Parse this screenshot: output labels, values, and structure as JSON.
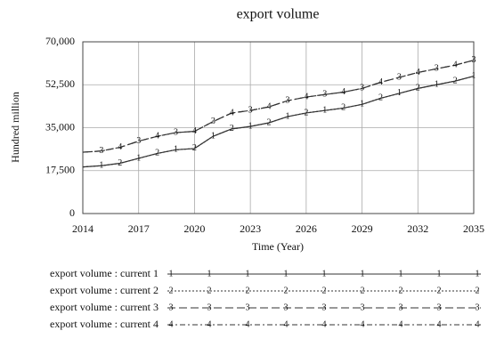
{
  "chart_data": {
    "type": "line",
    "title": "export volume",
    "x_label": "Time (Year)",
    "y_label": "Hundred million",
    "x": [
      2014,
      2015,
      2016,
      2017,
      2018,
      2019,
      2020,
      2021,
      2022,
      2023,
      2024,
      2025,
      2026,
      2027,
      2028,
      2029,
      2030,
      2031,
      2032,
      2033,
      2034,
      2035
    ],
    "series": [
      {
        "name": "export volume : current 1",
        "marker": "1",
        "line_style": "solid",
        "color": "#333333",
        "values": [
          19000,
          19500,
          20500,
          22500,
          24500,
          26000,
          26500,
          31500,
          34500,
          35500,
          37000,
          39500,
          41000,
          42000,
          43000,
          44500,
          47000,
          49000,
          51000,
          52500,
          54000,
          56000
        ]
      },
      {
        "name": "export volume : current 2",
        "marker": "2",
        "line_style": "dotted",
        "color": "#333333",
        "values": [
          19000,
          19500,
          20500,
          22500,
          24500,
          26000,
          26500,
          31500,
          34500,
          35500,
          37000,
          39500,
          41000,
          42000,
          43000,
          44500,
          47000,
          49000,
          51000,
          52500,
          54000,
          56000
        ]
      },
      {
        "name": "export volume : current 3",
        "marker": "3",
        "line_style": "dashed",
        "color": "#333333",
        "values": [
          25000,
          25500,
          27000,
          29500,
          31500,
          33000,
          33500,
          37500,
          41000,
          42000,
          43500,
          46000,
          47500,
          48500,
          49500,
          51000,
          53500,
          55500,
          57500,
          59000,
          60500,
          62500
        ]
      },
      {
        "name": "export volume : current 4",
        "marker": "4",
        "line_style": "dashdot",
        "color": "#333333",
        "values": [
          25000,
          25500,
          27000,
          29500,
          31500,
          33000,
          33500,
          37500,
          41000,
          42000,
          43500,
          46000,
          47500,
          48500,
          49500,
          51000,
          53500,
          55500,
          57500,
          59000,
          60500,
          62500
        ]
      }
    ],
    "xlim": [
      2014,
      2035
    ],
    "xticks": [
      2014,
      2017,
      2020,
      2023,
      2026,
      2029,
      2032,
      2035
    ],
    "ylim": [
      0,
      70000
    ],
    "yticks": [
      0,
      {
        "value": 17500,
        "label": "17,500"
      },
      {
        "value": 35000,
        "label": "35,000"
      },
      {
        "value": 52500,
        "label": "52,500"
      },
      {
        "value": 70000,
        "label": "70,000"
      }
    ],
    "grid": true
  }
}
